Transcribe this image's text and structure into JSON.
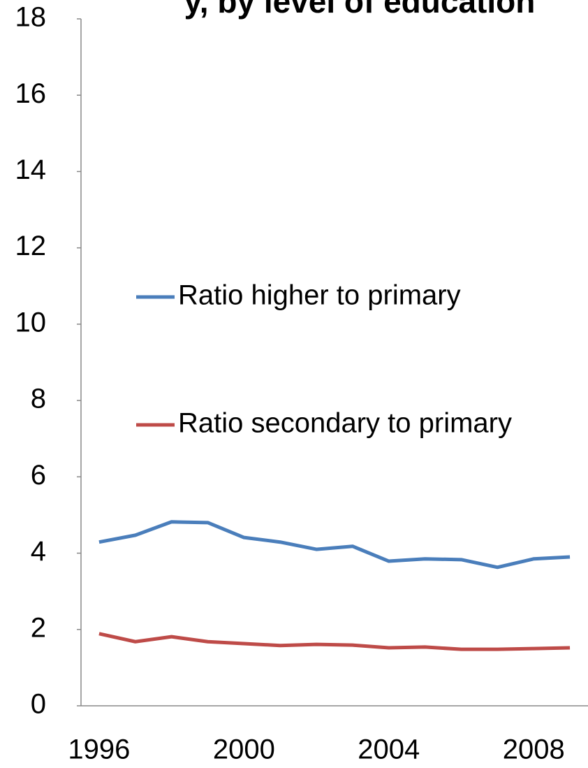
{
  "chart_data": {
    "type": "line",
    "title": "y, by level of education",
    "x": [
      1996,
      1997,
      1998,
      1999,
      2000,
      2001,
      2002,
      2003,
      2004,
      2005,
      2006,
      2007,
      2008,
      2009
    ],
    "series": [
      {
        "name": "Ratio higher to primary",
        "color": "#4a7ebb",
        "values": [
          4.29,
          4.47,
          4.82,
          4.8,
          4.41,
          4.29,
          4.1,
          4.18,
          3.79,
          3.85,
          3.83,
          3.63,
          3.85,
          3.9
        ]
      },
      {
        "name": "Ratio secondary to primary",
        "color": "#be4b48",
        "values": [
          1.89,
          1.68,
          1.81,
          1.68,
          1.63,
          1.58,
          1.61,
          1.59,
          1.52,
          1.54,
          1.48,
          1.48,
          1.5,
          1.52
        ]
      }
    ],
    "xlim": [
      1995.5,
      2009.5
    ],
    "xticks": [
      1996,
      2000,
      2004,
      2008
    ],
    "ylim": [
      0,
      18
    ],
    "yticks": [
      0,
      2,
      4,
      6,
      8,
      10,
      12,
      14,
      16,
      18
    ],
    "legend": "center"
  }
}
